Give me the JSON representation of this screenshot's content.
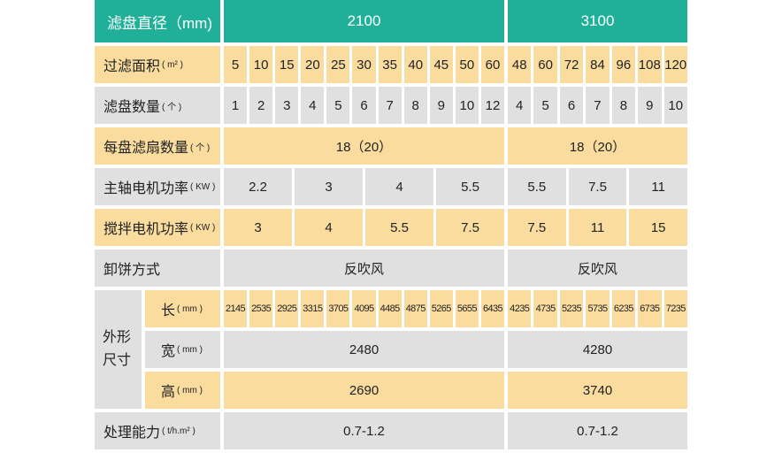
{
  "header": {
    "label": "滤盘直径（mm)",
    "d1": "2100",
    "d2": "3100"
  },
  "area": {
    "label": "过滤面积",
    "unit": "( m² )",
    "g1": [
      "5",
      "10",
      "15",
      "20",
      "25",
      "30",
      "35",
      "40",
      "45",
      "50",
      "60"
    ],
    "g2": [
      "48",
      "60",
      "72",
      "84",
      "96",
      "108",
      "120"
    ]
  },
  "count": {
    "label": "滤盘数量",
    "unit": "( 个 )",
    "g1": [
      "1",
      "2",
      "3",
      "4",
      "5",
      "6",
      "7",
      "8",
      "9",
      "10",
      "12"
    ],
    "g2": [
      "4",
      "5",
      "6",
      "7",
      "8",
      "9",
      "10"
    ]
  },
  "sectors": {
    "label": "每盘滤扇数量",
    "unit": "( 个 )",
    "g1": "18（20）",
    "g2": "18（20）"
  },
  "main_motor": {
    "label": "主轴电机功率",
    "unit": "( KW )",
    "g1": [
      "2.2",
      "3",
      "4",
      "5.5"
    ],
    "g2": [
      "5.5",
      "7.5",
      "11"
    ]
  },
  "mixer_motor": {
    "label": "搅拌电机功率",
    "unit": "( KW )",
    "g1": [
      "3",
      "4",
      "5.5",
      "7.5"
    ],
    "g2": [
      "7.5",
      "11",
      "15"
    ]
  },
  "discharge": {
    "label": "卸饼方式",
    "g1": "反吹风",
    "g2": "反吹风"
  },
  "dimensions": {
    "label_line1": "外形",
    "label_line2": "尺寸",
    "length": {
      "label": "长",
      "unit": "( mm )",
      "g1": [
        "2145",
        "2535",
        "2925",
        "3315",
        "3705",
        "4095",
        "4485",
        "4875",
        "5265",
        "5655",
        "6435"
      ],
      "g2": [
        "4235",
        "4735",
        "5235",
        "5735",
        "6235",
        "6735",
        "7235"
      ]
    },
    "width": {
      "label": "宽",
      "unit": "( mm )",
      "g1": "2480",
      "g2": "4280"
    },
    "height": {
      "label": "高",
      "unit": "( mm )",
      "g1": "2690",
      "g2": "3740"
    }
  },
  "capacity": {
    "label": "处理能力",
    "unit": "( t/h.m² )",
    "g1": "0.7-1.2",
    "g2": "0.7-1.2"
  },
  "colors": {
    "header": "#20b09a",
    "yellow": "#fadc9f",
    "gray": "#e0e0e0"
  }
}
